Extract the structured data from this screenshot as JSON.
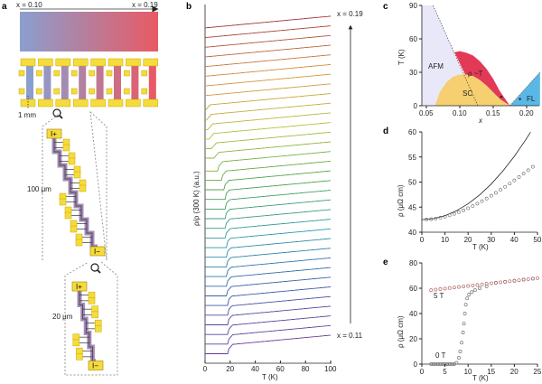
{
  "panel_labels": {
    "a": "a",
    "b": "b",
    "c": "c",
    "d": "d",
    "e": "e"
  },
  "panel_a": {
    "left_label": "x = 0.10",
    "right_label": "x = 0.19",
    "gradient_colors": [
      "#8a9fd0",
      "#e85a64"
    ],
    "scale_1": "1 mm",
    "scale_2": "100 μm",
    "scale_3": "20 μm",
    "pad_plus": "I+",
    "pad_minus": "I−",
    "pad_color": "#f5dc3c",
    "channel_color": "#a48cb8"
  },
  "chart_data": [
    {
      "panel": "b",
      "type": "line",
      "xlabel": "T (K)",
      "ylabel": "ρ/ρ (300 K) (a.u.)",
      "xlim": [
        0,
        100
      ],
      "xticks": [
        "0",
        "20",
        "40",
        "60",
        "80",
        "100"
      ],
      "label_top": "x = 0.19",
      "label_bottom": "x = 0.11",
      "x_range": [
        0.11,
        0.19
      ],
      "n_curves": 34,
      "Tc": [
        19,
        19,
        18.8,
        18.6,
        18.4,
        18.2,
        18,
        17.8,
        17.6,
        17.5,
        17.4,
        17.2,
        17,
        16.8,
        16.6,
        16.5,
        16.3,
        16,
        14,
        11,
        8,
        6,
        4,
        3,
        2,
        1,
        0,
        0,
        0,
        0,
        0,
        0,
        0,
        0
      ],
      "color_stops": [
        "#6a3a96",
        "#3c5aa8",
        "#2a9aa8",
        "#4aa24a",
        "#b4c040",
        "#d8903c",
        "#a03434"
      ],
      "top_label_color": "#a83232",
      "bottom_label_color": "#6a3a96"
    },
    {
      "panel": "c",
      "type": "area",
      "xlabel": "x",
      "ylabel": "T (K)",
      "xlim": [
        0.043,
        0.22
      ],
      "ylim": [
        0,
        90
      ],
      "xticks": [
        0.05,
        0.1,
        0.15,
        0.2
      ],
      "xtick_labels": [
        "0.05",
        "0.10",
        "0.15",
        "0.20"
      ],
      "yticks": [
        0,
        30,
        60,
        90
      ],
      "ytick_labels": [
        "0",
        "30",
        "60",
        "90"
      ],
      "regions": {
        "AFM": {
          "label": "AFM",
          "color": "#e8e8f8",
          "boundary": [
            [
              0.06,
              90
            ],
            [
              0.127,
              0
            ]
          ]
        },
        "SC": {
          "label": "SC",
          "color": "#f5cf70",
          "points": [
            [
              0.063,
              0
            ],
            [
              0.07,
              12
            ],
            [
              0.08,
              21
            ],
            [
              0.09,
              26
            ],
            [
              0.1,
              28
            ],
            [
              0.11,
              28
            ],
            [
              0.12,
              26.5
            ],
            [
              0.13,
              23
            ],
            [
              0.14,
              18
            ],
            [
              0.15,
              12
            ],
            [
              0.16,
              6
            ],
            [
              0.175,
              0
            ]
          ]
        },
        "rhoT": {
          "label": "ρ ~T",
          "color": "#e23a56",
          "points": [
            [
              0.092,
              48
            ],
            [
              0.1,
              49
            ],
            [
              0.11,
              47.5
            ],
            [
              0.12,
              45
            ],
            [
              0.13,
              40
            ],
            [
              0.14,
              33
            ],
            [
              0.15,
              24
            ],
            [
              0.16,
              13
            ],
            [
              0.175,
              0
            ],
            [
              0.16,
              6
            ],
            [
              0.15,
              12
            ],
            [
              0.14,
              18
            ],
            [
              0.13,
              23
            ],
            [
              0.12,
              26.5
            ],
            [
              0.108,
              28
            ]
          ]
        },
        "FL": {
          "label": "FL",
          "color": "#5ab8e6",
          "points": [
            [
              0.175,
              0
            ],
            [
              0.22,
              30
            ],
            [
              0.22,
              0
            ]
          ]
        }
      },
      "markers": [
        [
          0.162,
          8
        ],
        [
          0.19,
          6
        ]
      ]
    },
    {
      "panel": "d",
      "type": "scatter",
      "xlabel": "T (K)",
      "ylabel": "ρ (μΩ cm)",
      "xlim": [
        0,
        50
      ],
      "ylim": [
        40,
        60
      ],
      "xticks": [
        "0",
        "10",
        "20",
        "30",
        "40",
        "50"
      ],
      "yticks": [
        "40",
        "45",
        "50",
        "55",
        "60"
      ],
      "data_T": [
        2,
        4,
        6,
        8,
        10,
        12,
        14,
        16,
        18,
        20,
        22,
        24,
        26,
        28,
        30,
        32,
        34,
        36,
        38,
        40,
        42,
        44,
        46,
        48
      ],
      "data_rho": [
        42.53,
        42.6,
        42.73,
        42.9,
        43.11,
        43.37,
        43.66,
        44.0,
        44.37,
        44.78,
        45.22,
        45.69,
        46.19,
        46.72,
        47.27,
        47.85,
        48.44,
        49.06,
        49.69,
        50.34,
        51.0,
        51.68,
        52.36,
        53.05
      ],
      "fit_T": [
        0,
        5,
        10,
        15,
        20,
        25,
        30,
        35,
        40,
        45,
        47
      ],
      "fit_rho": [
        42.5,
        42.7,
        43.29,
        44.28,
        45.66,
        47.44,
        49.61,
        52.18,
        55.14,
        58.5,
        59.95
      ]
    },
    {
      "panel": "e",
      "type": "scatter",
      "xlabel": "T (K)",
      "ylabel": "ρ (μΩ cm)",
      "xlim": [
        0,
        25
      ],
      "ylim": [
        0,
        80
      ],
      "xticks": [
        "0",
        "5",
        "10",
        "15",
        "20",
        "25"
      ],
      "yticks": [
        "0",
        "20",
        "40",
        "60",
        "80"
      ],
      "series": [
        {
          "name": "5 T",
          "color": "#b06a6a",
          "T": [
            2,
            3,
            4,
            5,
            6,
            7,
            8,
            9,
            10,
            11,
            12,
            13,
            14,
            15,
            16,
            17,
            18,
            19,
            20,
            21,
            22,
            23,
            24,
            25
          ],
          "rho": [
            58.5,
            58.9,
            59.3,
            59.7,
            60.2,
            60.6,
            61.0,
            61.4,
            61.8,
            62.2,
            62.6,
            63.0,
            63.5,
            63.9,
            64.3,
            64.7,
            65.1,
            65.5,
            65.9,
            66.3,
            66.8,
            67.2,
            67.6,
            68.0
          ]
        },
        {
          "name": "0 T",
          "color": "#777777",
          "T": [
            2,
            2.5,
            3,
            3.5,
            4,
            4.5,
            5,
            5.5,
            6,
            6.5,
            7,
            7.5,
            8,
            8.3,
            8.6,
            8.9,
            9.1,
            9.3,
            9.5,
            9.8,
            10.2,
            10.8,
            11.5,
            12.5,
            14,
            16,
            18,
            20,
            22,
            24
          ],
          "rho": [
            0,
            0,
            0,
            0,
            0,
            0,
            0,
            0,
            0,
            0,
            0,
            1,
            5,
            10,
            17,
            25,
            32,
            40,
            47,
            52,
            55,
            57,
            58.5,
            60,
            61.5,
            64.3,
            65.1,
            65.9,
            66.8,
            67.6
          ]
        }
      ]
    }
  ]
}
